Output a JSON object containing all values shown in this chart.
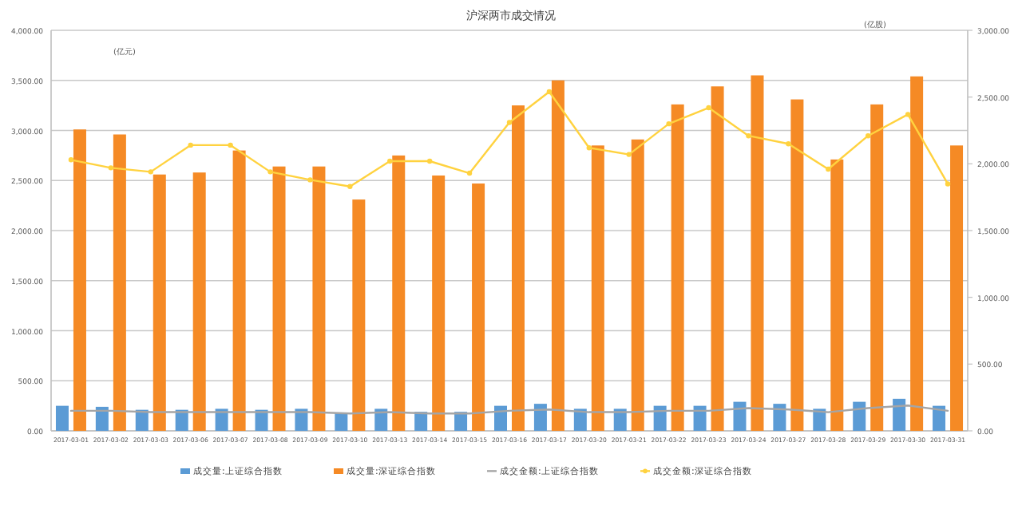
{
  "chart_data": {
    "type": "bar",
    "title": "沪深两市成交情况",
    "ylabel": "(亿元)",
    "y2label": "(亿股)",
    "categories": [
      "2017-03-01",
      "2017-03-02",
      "2017-03-03",
      "2017-03-06",
      "2017-03-07",
      "2017-03-08",
      "2017-03-09",
      "2017-03-10",
      "2017-03-13",
      "2017-03-14",
      "2017-03-15",
      "2017-03-16",
      "2017-03-17",
      "2017-03-20",
      "2017-03-21",
      "2017-03-22",
      "2017-03-23",
      "2017-03-24",
      "2017-03-27",
      "2017-03-28",
      "2017-03-29",
      "2017-03-30",
      "2017-03-31"
    ],
    "series": [
      {
        "name": "成交量:上证综合指数",
        "color": "#5b9bd5",
        "values": [
          250,
          240,
          210,
          210,
          220,
          210,
          220,
          180,
          220,
          190,
          190,
          250,
          270,
          220,
          220,
          250,
          250,
          290,
          270,
          220,
          290,
          320,
          250
        ]
      },
      {
        "name": "成交量:深证综合指数",
        "color": "#f58a25",
        "values": [
          3010,
          2960,
          2560,
          2580,
          2800,
          2640,
          2640,
          2310,
          2750,
          2550,
          2470,
          3250,
          3500,
          2850,
          2910,
          3260,
          3440,
          3550,
          3310,
          2710,
          3260,
          3540,
          2850
        ]
      },
      {
        "name": "成交金额:上证综合指数",
        "type": "line",
        "axis": "y2",
        "color": "#a5a5a5",
        "marker": "none",
        "values": [
          150,
          150,
          140,
          140,
          140,
          140,
          140,
          130,
          140,
          130,
          130,
          150,
          160,
          140,
          140,
          150,
          150,
          170,
          160,
          140,
          170,
          190,
          150
        ]
      },
      {
        "name": "成交金额:深证综合指数",
        "type": "line",
        "axis": "y2",
        "color": "#ffd23f",
        "marker": "circle",
        "values": [
          2030,
          1970,
          1940,
          2140,
          2140,
          1940,
          1880,
          1830,
          2020,
          2020,
          1930,
          2310,
          2540,
          2120,
          2070,
          2300,
          2420,
          2210,
          2150,
          1960,
          2210,
          2370,
          1850
        ]
      }
    ],
    "ylim": [
      0,
      4000
    ],
    "yticks": [
      {
        "value": 0,
        "label": "0.00"
      },
      {
        "value": 500,
        "label": "500.00"
      },
      {
        "value": 1000,
        "label": "1,000.00"
      },
      {
        "value": 1500,
        "label": "1,500.00"
      },
      {
        "value": 2000,
        "label": "2,000.00"
      },
      {
        "value": 2500,
        "label": "2,500.00"
      },
      {
        "value": 3000,
        "label": "3,000.00"
      },
      {
        "value": 3500,
        "label": "3,500.00"
      },
      {
        "value": 4000,
        "label": "4,000.00"
      }
    ],
    "y2lim": [
      0,
      3000
    ],
    "y2ticks": [
      {
        "value": 0,
        "label": "0.00"
      },
      {
        "value": 500,
        "label": "500.00"
      },
      {
        "value": 1000,
        "label": "1,000.00"
      },
      {
        "value": 1500,
        "label": "1,500.00"
      },
      {
        "value": 2000,
        "label": "2,000.00"
      },
      {
        "value": 2500,
        "label": "2,500.00"
      },
      {
        "value": 3000,
        "label": "3,000.00"
      }
    ],
    "grid": "y",
    "legend": "bottom"
  }
}
